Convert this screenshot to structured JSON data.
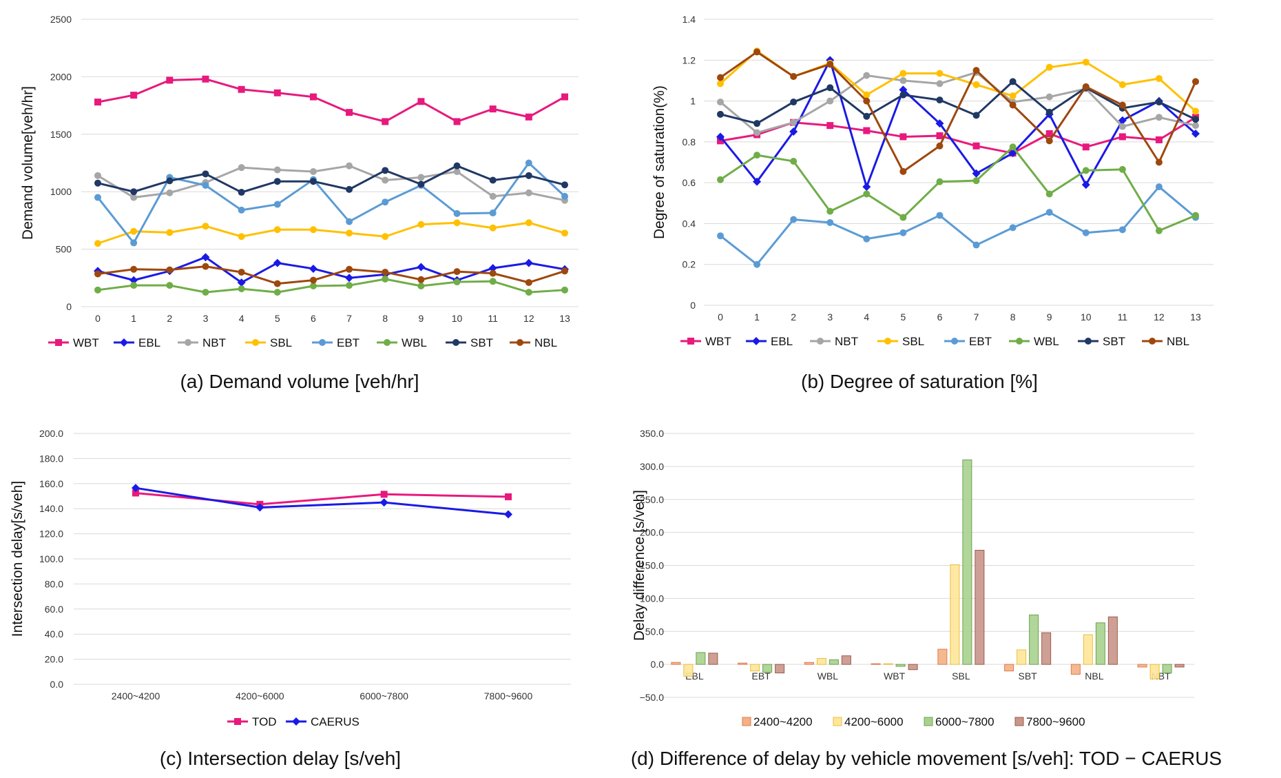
{
  "chart_data": [
    {
      "type": "line",
      "panel": "a",
      "caption": "(a) Demand volume [veh/hr]",
      "ylabel": "Demand volume[veh/hr]",
      "xlabel": "",
      "x": [
        0,
        1,
        2,
        3,
        4,
        5,
        6,
        7,
        8,
        9,
        10,
        11,
        12,
        13
      ],
      "ylim": [
        0,
        2500
      ],
      "yticks": [
        "0",
        "500",
        "1000",
        "1500",
        "2000",
        "2500"
      ],
      "grid": true,
      "legend": "bottom",
      "series": [
        {
          "name": "WBT",
          "color": "#e8197d",
          "marker": "square",
          "values": [
            1780,
            1840,
            1970,
            1980,
            1890,
            1860,
            1825,
            1690,
            1610,
            1785,
            1610,
            1720,
            1650,
            1825
          ]
        },
        {
          "name": "EBL",
          "color": "#1a1ae6",
          "marker": "diamond",
          "values": [
            310,
            230,
            310,
            430,
            210,
            380,
            330,
            250,
            280,
            345,
            230,
            335,
            380,
            325
          ]
        },
        {
          "name": "NBT",
          "color": "#a6a6a6",
          "marker": "circle",
          "values": [
            1140,
            950,
            990,
            1080,
            1210,
            1190,
            1175,
            1225,
            1100,
            1125,
            1175,
            960,
            990,
            925
          ]
        },
        {
          "name": "SBL",
          "color": "#ffc000",
          "marker": "circle",
          "values": [
            550,
            655,
            645,
            700,
            610,
            670,
            670,
            640,
            610,
            715,
            730,
            685,
            730,
            640
          ]
        },
        {
          "name": "EBT",
          "color": "#5b9bd5",
          "marker": "circle",
          "values": [
            950,
            555,
            1125,
            1055,
            840,
            890,
            1105,
            740,
            910,
            1055,
            810,
            815,
            1250,
            960
          ]
        },
        {
          "name": "WBL",
          "color": "#70ad47",
          "marker": "circle",
          "values": [
            145,
            185,
            185,
            125,
            155,
            125,
            180,
            185,
            240,
            180,
            215,
            220,
            125,
            145
          ]
        },
        {
          "name": "SBT",
          "color": "#203864",
          "marker": "circle",
          "values": [
            1075,
            1000,
            1095,
            1155,
            995,
            1090,
            1090,
            1020,
            1185,
            1065,
            1225,
            1100,
            1140,
            1060
          ]
        },
        {
          "name": "NBL",
          "color": "#9e480e",
          "marker": "circle",
          "values": [
            285,
            325,
            320,
            350,
            300,
            200,
            230,
            325,
            300,
            235,
            305,
            290,
            210,
            310
          ]
        }
      ]
    },
    {
      "type": "line",
      "panel": "b",
      "caption": "(b) Degree of saturation [%]",
      "ylabel": "Degree of saturation(%)",
      "xlabel": "",
      "x": [
        0,
        1,
        2,
        3,
        4,
        5,
        6,
        7,
        8,
        9,
        10,
        11,
        12,
        13
      ],
      "ylim": [
        0,
        1.4
      ],
      "yticks": [
        "0",
        "0.2",
        "0.4",
        "0.6",
        "0.8",
        "1",
        "1.2",
        "1.4"
      ],
      "grid": true,
      "legend": "bottom",
      "series": [
        {
          "name": "WBT",
          "color": "#e8197d",
          "marker": "square",
          "values": [
            0.805,
            0.835,
            0.895,
            0.88,
            0.855,
            0.825,
            0.83,
            0.78,
            0.745,
            0.84,
            0.775,
            0.825,
            0.81,
            0.92
          ]
        },
        {
          "name": "EBL",
          "color": "#1a1ae6",
          "marker": "diamond",
          "values": [
            0.825,
            0.605,
            0.85,
            1.2,
            0.58,
            1.055,
            0.89,
            0.645,
            0.745,
            0.935,
            0.59,
            0.905,
            1.0,
            0.84
          ]
        },
        {
          "name": "NBT",
          "color": "#a6a6a6",
          "marker": "circle",
          "values": [
            0.995,
            0.845,
            0.895,
            1.0,
            1.125,
            1.1,
            1.085,
            1.14,
            0.995,
            1.02,
            1.06,
            0.875,
            0.92,
            0.88
          ]
        },
        {
          "name": "SBL",
          "color": "#ffc000",
          "marker": "circle",
          "values": [
            1.085,
            1.245,
            1.12,
            1.185,
            1.03,
            1.135,
            1.135,
            1.08,
            1.025,
            1.165,
            1.19,
            1.08,
            1.11,
            0.95
          ]
        },
        {
          "name": "EBT",
          "color": "#5b9bd5",
          "marker": "circle",
          "values": [
            0.34,
            0.2,
            0.42,
            0.405,
            0.325,
            0.355,
            0.44,
            0.295,
            0.38,
            0.455,
            0.355,
            0.37,
            0.58,
            0.43
          ]
        },
        {
          "name": "WBL",
          "color": "#70ad47",
          "marker": "circle",
          "values": [
            0.615,
            0.735,
            0.705,
            0.46,
            0.545,
            0.43,
            0.605,
            0.61,
            0.775,
            0.545,
            0.66,
            0.665,
            0.365,
            0.44
          ]
        },
        {
          "name": "SBT",
          "color": "#203864",
          "marker": "circle",
          "values": [
            0.935,
            0.89,
            0.995,
            1.065,
            0.925,
            1.03,
            1.005,
            0.93,
            1.095,
            0.945,
            1.065,
            0.965,
            0.995,
            0.91
          ]
        },
        {
          "name": "NBL",
          "color": "#9e480e",
          "marker": "circle",
          "values": [
            1.115,
            1.24,
            1.12,
            1.18,
            1.0,
            0.655,
            0.78,
            1.15,
            0.98,
            0.805,
            1.07,
            0.98,
            0.7,
            1.095
          ]
        }
      ]
    },
    {
      "type": "line",
      "panel": "c",
      "caption": "(c) Intersection delay [s/veh]",
      "ylabel": "Intersection delay[s/veh]",
      "xlabel": "",
      "categories": [
        "2400~4200",
        "4200~6000",
        "6000~7800",
        "7800~9600"
      ],
      "ylim": [
        0,
        200
      ],
      "yticks": [
        "0.0",
        "20.0",
        "40.0",
        "60.0",
        "80.0",
        "100.0",
        "120.0",
        "140.0",
        "160.0",
        "180.0",
        "200.0"
      ],
      "grid": true,
      "legend": "bottom",
      "series": [
        {
          "name": "TOD",
          "color": "#e8197d",
          "marker": "square",
          "values": [
            152.5,
            143.5,
            151.5,
            149.5
          ]
        },
        {
          "name": "CAERUS",
          "color": "#1a1ae6",
          "marker": "diamond",
          "values": [
            156.5,
            141.0,
            145.0,
            135.5
          ]
        }
      ]
    },
    {
      "type": "bar",
      "panel": "d",
      "caption": "(d) Difference of delay by vehicle movement [s/veh]: TOD − CAERUS",
      "ylabel": "Delay difference [s/veh]",
      "xlabel": "",
      "categories": [
        "EBL",
        "EBT",
        "WBL",
        "WBT",
        "SBL",
        "SBT",
        "NBL",
        "NBT"
      ],
      "ylim": [
        -50,
        350
      ],
      "yticks": [
        "−50.0",
        "0.0",
        "50.0",
        "100.0",
        "150.0",
        "200.0",
        "250.0",
        "300.0",
        "350.0"
      ],
      "grid": true,
      "legend": "bottom",
      "series": [
        {
          "name": "2400~4200",
          "color": "#f4b183",
          "stroke": "#e07850",
          "values": [
            3,
            2,
            3,
            1,
            23,
            -10,
            -15,
            -4
          ]
        },
        {
          "name": "4200~6000",
          "color": "#ffe699",
          "stroke": "#e8c040",
          "values": [
            -18,
            -10,
            9,
            1,
            151,
            22,
            45,
            -22
          ]
        },
        {
          "name": "6000~7800",
          "color": "#a9d18e",
          "stroke": "#6fa050",
          "values": [
            18,
            -12,
            7,
            -3,
            310,
            75,
            63,
            -13
          ]
        },
        {
          "name": "7800~9600",
          "color": "#c9968a",
          "stroke": "#9a5a4a",
          "values": [
            17,
            -13,
            13,
            -8,
            173,
            48,
            72,
            -4
          ]
        }
      ]
    }
  ]
}
